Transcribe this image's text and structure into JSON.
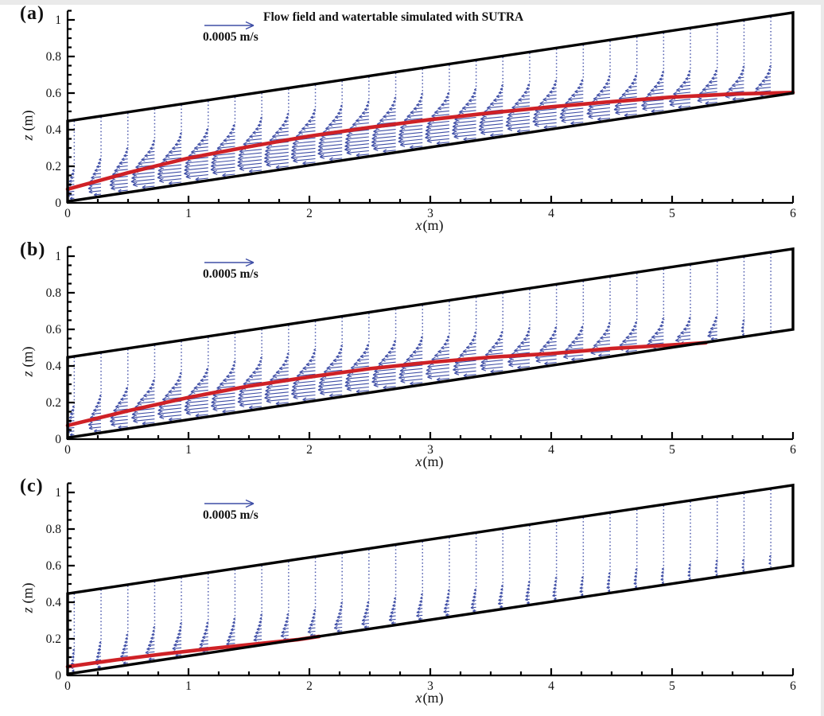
{
  "figure": {
    "xlabel_var": "x",
    "xlabel_unit": "(m)",
    "ylabel_var": "z",
    "ylabel_unit": "(m)"
  },
  "style": {
    "vector_color": "#3f4ea6",
    "dot_color": "#4d5aad",
    "watertable_color": "#cf2126",
    "boundary_color": "#000000",
    "axis_color": "#000000",
    "text_color": "#111111"
  },
  "chart_data": [
    {
      "type": "line",
      "kind": "2d-vector-field-with-watertable",
      "label": "(a)",
      "title": "Flow field and watertable simulated with SUTRA",
      "scale_label": "0.0005 m/s",
      "scale_velocity_ms": 0.0005,
      "xlabel": "x(m)",
      "ylabel": "z (m)",
      "xlim": [
        0,
        6
      ],
      "ylim": [
        0,
        1.05
      ],
      "xticks": [
        "0",
        "1",
        "2",
        "3",
        "4",
        "5",
        "6"
      ],
      "xtick_values": [
        0,
        1,
        2,
        3,
        4,
        5,
        6
      ],
      "yticks": [
        "0",
        "0.2",
        "0.4",
        "0.6",
        "0.8",
        "1"
      ],
      "ytick_values": [
        0,
        0.2,
        0.4,
        0.6,
        0.8,
        1
      ],
      "x_minor_step": 0.25,
      "y_minor_step": 0.05,
      "grid": false,
      "legend_position": "upper-left",
      "domain": {
        "bottom": [
          [
            0,
            0.008
          ],
          [
            6,
            0.6
          ]
        ],
        "top": [
          [
            0,
            0.447
          ],
          [
            6,
            1.04
          ]
        ]
      },
      "watertable": [
        [
          0,
          0.075
        ],
        [
          0.5,
          0.165
        ],
        [
          1,
          0.245
        ],
        [
          1.5,
          0.307
        ],
        [
          2,
          0.365
        ],
        [
          2.5,
          0.412
        ],
        [
          3,
          0.455
        ],
        [
          3.5,
          0.492
        ],
        [
          4,
          0.525
        ],
        [
          4.5,
          0.553
        ],
        [
          5,
          0.578
        ],
        [
          5.5,
          0.595
        ],
        [
          6,
          0.603
        ]
      ],
      "flow_direction": "downslope toward x = 0",
      "max_velocity_ms": 0.00026,
      "vector_model": {
        "n_stations": 27,
        "x_start": 0.055,
        "x_step": 0.2216,
        "z_step": 0.019,
        "amp": 1.0,
        "profile_center_offset": 0.05,
        "profile_width": 0.035,
        "wt_end_x": 6.03,
        "tail_tau": 0,
        "left_ramp_base": 0.3,
        "left_ramp_slope": 0.95
      }
    },
    {
      "type": "line",
      "kind": "2d-vector-field-with-watertable",
      "label": "(b)",
      "scale_label": "0.0005 m/s",
      "scale_velocity_ms": 0.0005,
      "xlabel": "x(m)",
      "ylabel": "z (m)",
      "xlim": [
        0,
        6
      ],
      "ylim": [
        0,
        1.05
      ],
      "xticks": [
        "0",
        "1",
        "2",
        "3",
        "4",
        "5",
        "6"
      ],
      "xtick_values": [
        0,
        1,
        2,
        3,
        4,
        5,
        6
      ],
      "yticks": [
        "0",
        "0.2",
        "0.4",
        "0.6",
        "0.8",
        "1"
      ],
      "ytick_values": [
        0,
        0.2,
        0.4,
        0.6,
        0.8,
        1
      ],
      "x_minor_step": 0.25,
      "y_minor_step": 0.05,
      "grid": false,
      "legend_position": "upper-left",
      "domain": {
        "bottom": [
          [
            0,
            0.008
          ],
          [
            6,
            0.6
          ]
        ],
        "top": [
          [
            0,
            0.447
          ],
          [
            6,
            1.04
          ]
        ]
      },
      "watertable": [
        [
          0,
          0.075
        ],
        [
          0.5,
          0.155
        ],
        [
          1,
          0.228
        ],
        [
          1.5,
          0.29
        ],
        [
          2,
          0.34
        ],
        [
          2.5,
          0.385
        ],
        [
          3,
          0.42
        ],
        [
          3.5,
          0.448
        ],
        [
          4,
          0.468
        ],
        [
          4.5,
          0.495
        ],
        [
          5,
          0.515
        ],
        [
          5.28,
          0.527
        ]
      ],
      "flow_direction": "downslope toward x = 0",
      "max_velocity_ms": 0.00026,
      "vector_model": {
        "n_stations": 27,
        "x_start": 0.055,
        "x_step": 0.2216,
        "z_step": 0.019,
        "amp": 1.0,
        "profile_center_offset": 0.05,
        "profile_width": 0.035,
        "wt_end_x": 5.28,
        "tail_tau": 0.18,
        "left_ramp_base": 0.3,
        "left_ramp_slope": 0.95
      }
    },
    {
      "type": "line",
      "kind": "2d-vector-field-with-watertable",
      "label": "(c)",
      "scale_label": "0.0005 m/s",
      "scale_velocity_ms": 0.0005,
      "xlabel": "x(m)",
      "ylabel": "z (m)",
      "xlim": [
        0,
        6
      ],
      "ylim": [
        0,
        1.05
      ],
      "xticks": [
        "0",
        "1",
        "2",
        "3",
        "4",
        "5",
        "6"
      ],
      "xtick_values": [
        0,
        1,
        2,
        3,
        4,
        5,
        6
      ],
      "yticks": [
        "0",
        "0.2",
        "0.4",
        "0.6",
        "0.8",
        "1"
      ],
      "ytick_values": [
        0,
        0.2,
        0.4,
        0.6,
        0.8,
        1
      ],
      "x_minor_step": 0.25,
      "y_minor_step": 0.05,
      "grid": false,
      "legend_position": "upper-left",
      "domain": {
        "bottom": [
          [
            0,
            0.008
          ],
          [
            6,
            0.6
          ]
        ],
        "top": [
          [
            0,
            0.447
          ],
          [
            6,
            1.04
          ]
        ]
      },
      "watertable": [
        [
          0,
          0.048
        ],
        [
          0.4,
          0.085
        ],
        [
          0.8,
          0.118
        ],
        [
          1.2,
          0.148
        ],
        [
          1.6,
          0.175
        ],
        [
          1.9,
          0.195
        ],
        [
          2.08,
          0.213
        ]
      ],
      "flow_direction": "downslope toward x = 0",
      "max_velocity_ms": 0.00015,
      "vector_model": {
        "n_stations": 27,
        "x_start": 0.055,
        "x_step": 0.2216,
        "z_step": 0.019,
        "amp": 0.6,
        "profile_center_offset": 0.045,
        "profile_width": 0.05,
        "wt_end_x": 2.08,
        "tail_tau": 2.6,
        "left_ramp_base": 0.3,
        "left_ramp_slope": 0.95
      }
    }
  ]
}
